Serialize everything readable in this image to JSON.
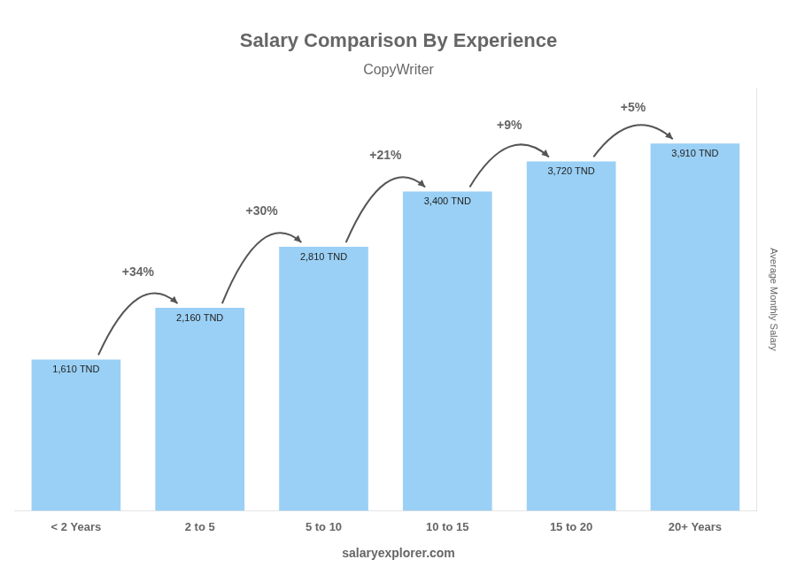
{
  "chart_data": {
    "type": "bar",
    "title": "Salary Comparison By Experience",
    "subtitle": "CopyWriter",
    "y_label": "Average Monthly Salary",
    "categories": [
      "< 2 Years",
      "2 to 5",
      "5 to 10",
      "10 to 15",
      "15 to 20",
      "20+ Years"
    ],
    "values": [
      1610,
      2160,
      2810,
      3400,
      3720,
      3910
    ],
    "value_labels": [
      "1,610 TND",
      "2,160 TND",
      "2,810 TND",
      "3,400 TND",
      "3,720 TND",
      "3,910 TND"
    ],
    "data_labels": true,
    "annotations": [
      "+34%",
      "+30%",
      "+21%",
      "+9%",
      "+5%"
    ],
    "footer": [
      "salary",
      "explorer.com"
    ],
    "ylim": [
      0,
      4500
    ],
    "tick_labels": "x",
    "grid": false
  }
}
